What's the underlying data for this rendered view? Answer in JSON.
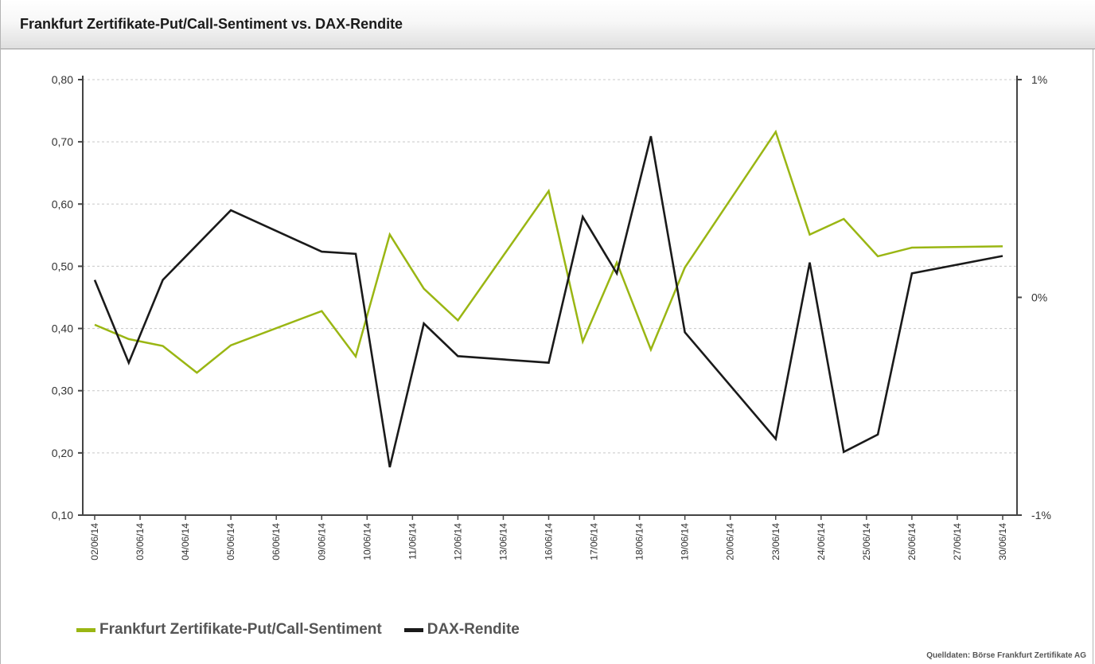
{
  "title": "Frankfurt Zertifikate-Put/Call-Sentiment vs. DAX-Rendite",
  "source": "Quelldaten: Börse Frankfurt Zertifikate AG",
  "chart_data": {
    "type": "line",
    "title": "Frankfurt Zertifikate-Put/Call-Sentiment vs. DAX-Rendite",
    "grid": true,
    "legend_position": "bottom-left",
    "y_left": {
      "min": 0.1,
      "max": 0.8,
      "ticks": [
        "0,10",
        "0,20",
        "0,30",
        "0,40",
        "0,50",
        "0,60",
        "0,70",
        "0,80"
      ]
    },
    "y_right": {
      "min": -1,
      "max": 1,
      "ticks": [
        "-1%",
        "0%",
        "1%"
      ]
    },
    "x_ticks": [
      "02/06/14",
      "03/06/14",
      "04/06/14",
      "05/06/14",
      "06/06/14",
      "09/06/14",
      "10/06/14",
      "11/06/14",
      "12/06/14",
      "13/06/14",
      "16/06/14",
      "17/06/14",
      "18/06/14",
      "19/06/14",
      "20/06/14",
      "23/06/14",
      "24/06/14",
      "25/06/14",
      "26/06/14",
      "27/06/14",
      "30/06/14"
    ],
    "series": [
      {
        "name": "Frankfurt Zertifikate-Put/Call-Sentiment",
        "axis": "left",
        "color": "#9ab613",
        "points": [
          [
            0,
            0.406
          ],
          [
            0.75,
            0.383
          ],
          [
            1.5,
            0.372
          ],
          [
            2.25,
            0.329
          ],
          [
            3.0,
            0.373
          ],
          [
            5.0,
            0.428
          ],
          [
            5.75,
            0.355
          ],
          [
            6.5,
            0.551
          ],
          [
            7.25,
            0.464
          ],
          [
            8.0,
            0.413
          ],
          [
            10.0,
            0.621
          ],
          [
            10.75,
            0.379
          ],
          [
            11.5,
            0.506
          ],
          [
            12.25,
            0.366
          ],
          [
            13.0,
            0.498
          ],
          [
            15.0,
            0.716
          ],
          [
            15.75,
            0.551
          ],
          [
            16.5,
            0.576
          ],
          [
            17.25,
            0.516
          ],
          [
            18.0,
            0.53
          ],
          [
            20.0,
            0.532
          ]
        ]
      },
      {
        "name": "DAX-Rendite",
        "axis": "right",
        "color": "#1a1a1a",
        "points": [
          [
            0,
            0.08
          ],
          [
            0.75,
            -0.3
          ],
          [
            1.5,
            0.08
          ],
          [
            3.0,
            0.4
          ],
          [
            5.0,
            0.21
          ],
          [
            5.75,
            0.2
          ],
          [
            6.5,
            -0.78
          ],
          [
            7.25,
            -0.12
          ],
          [
            8.0,
            -0.27
          ],
          [
            10.0,
            -0.3
          ],
          [
            10.75,
            0.37
          ],
          [
            11.5,
            0.11
          ],
          [
            12.25,
            0.74
          ],
          [
            13.0,
            -0.16
          ],
          [
            15.0,
            -0.65
          ],
          [
            15.75,
            0.16
          ],
          [
            16.5,
            -0.71
          ],
          [
            17.25,
            -0.63
          ],
          [
            18.0,
            0.11
          ],
          [
            20.0,
            0.19
          ]
        ]
      }
    ]
  }
}
